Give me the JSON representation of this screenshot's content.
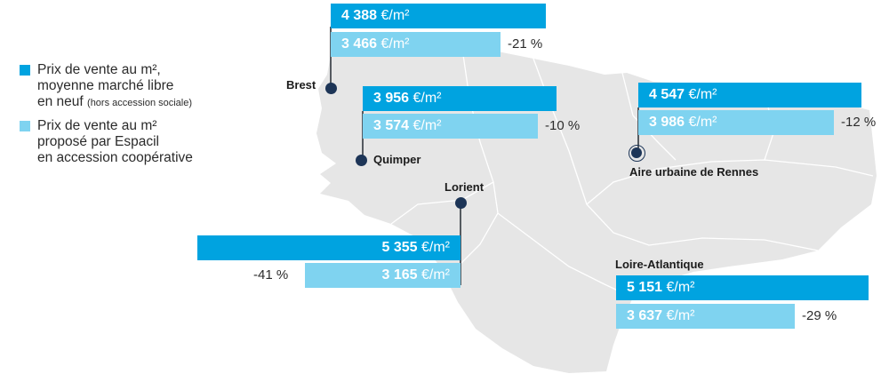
{
  "colors": {
    "market": "#00a3e0",
    "espacil": "#7fd3f0",
    "map_fill": "#e6e6e6",
    "map_border": "#ffffff",
    "dot": "#1d3557"
  },
  "legend": {
    "market": {
      "line1": "Prix de vente au m²,",
      "line2": "moyenne marché libre",
      "line3": "en neuf",
      "note": "(hors accession sociale)"
    },
    "espacil": {
      "line1": "Prix de vente au m²",
      "line2": "proposé par Espacil",
      "line3": "en accession coopérative"
    }
  },
  "unit": "€/m²",
  "chart_data": {
    "type": "bar",
    "orientation": "horizontal",
    "categories": [
      "Brest",
      "Quimper",
      "Aire urbaine de Rennes",
      "Lorient",
      "Loire-Atlantique"
    ],
    "series": [
      {
        "name": "Prix de vente au m², moyenne marché libre en neuf (hors accession sociale)",
        "values": [
          4388,
          3956,
          4547,
          5355,
          5151
        ]
      },
      {
        "name": "Prix de vente au m² proposé par Espacil en accession coopérative",
        "values": [
          3466,
          3574,
          3986,
          3165,
          3637
        ]
      }
    ],
    "value_labels": {
      "market": [
        "4 388",
        "3 956",
        "4 547",
        "5 355",
        "5 151"
      ],
      "espacil": [
        "3 466",
        "3 574",
        "3 986",
        "3 165",
        "3 637"
      ]
    },
    "differences": [
      "-21 %",
      "-10 %",
      "-12 %",
      "-41 %",
      "-29 %"
    ],
    "background": "map of Brittany"
  }
}
